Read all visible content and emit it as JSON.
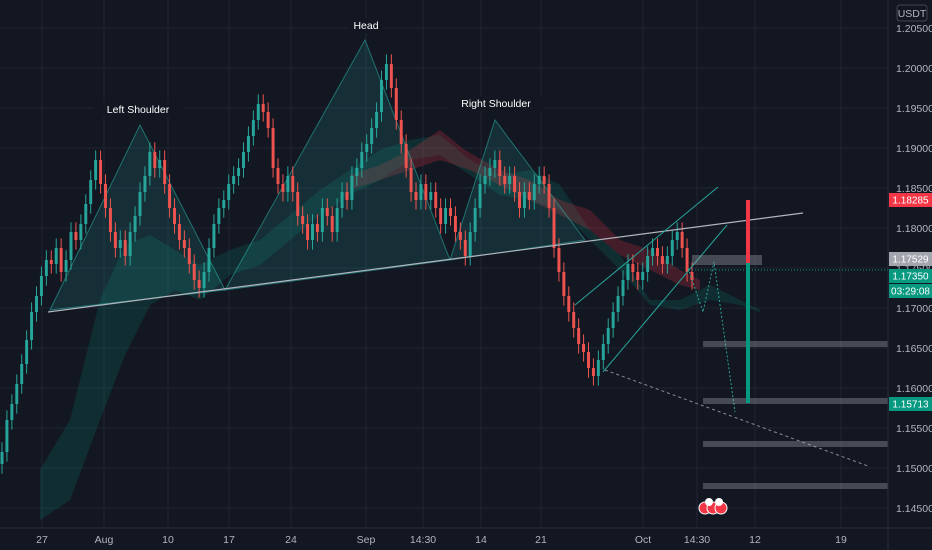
{
  "currency": "USDT",
  "chart_data": {
    "type": "candlestick",
    "title": "",
    "x_ticks": [
      "27",
      "Aug",
      "10",
      "17",
      "24",
      "Sep",
      "14:30",
      "14",
      "21",
      "Oct",
      "14:30",
      "12",
      "19"
    ],
    "y_ticks": [
      "1.20500",
      "1.20000",
      "1.19500",
      "1.19000",
      "1.18500",
      "1.18000",
      "1.17500",
      "1.17000",
      "1.16500",
      "1.16000",
      "1.15500",
      "1.15000",
      "1.14500"
    ],
    "ylim": [
      1.1425,
      1.2085
    ],
    "grid": true,
    "annotations": [
      "Left Shoulder",
      "Head",
      "Right Shoulder"
    ],
    "price_tags": [
      {
        "value": "1.18285",
        "color": "#f23645"
      },
      {
        "value": "1.17529",
        "color": "#a3a6af"
      },
      {
        "value": "1.17350",
        "color": "#089981"
      },
      {
        "value": "03:29:08",
        "color": "#089981"
      },
      {
        "value": "1.15713",
        "color": "#089981"
      }
    ],
    "series": [
      {
        "type": "candles",
        "values": [
          [
            1.1505,
            1.152
          ],
          [
            1.152,
            1.156
          ],
          [
            1.156,
            1.158
          ],
          [
            1.158,
            1.1605
          ],
          [
            1.1605,
            1.163
          ],
          [
            1.163,
            1.166
          ],
          [
            1.166,
            1.1695
          ],
          [
            1.1695,
            1.1715
          ],
          [
            1.1715,
            1.174
          ],
          [
            1.174,
            1.176
          ],
          [
            1.176,
            1.1755
          ],
          [
            1.1755,
            1.1775
          ],
          [
            1.1775,
            1.1745
          ],
          [
            1.1745,
            1.176
          ],
          [
            1.176,
            1.1795
          ],
          [
            1.1795,
            1.1785
          ],
          [
            1.1785,
            1.1805
          ],
          [
            1.1805,
            1.183
          ],
          [
            1.183,
            1.186
          ],
          [
            1.186,
            1.1885
          ],
          [
            1.1885,
            1.1855
          ],
          [
            1.1855,
            1.1825
          ],
          [
            1.1825,
            1.1795
          ],
          [
            1.1795,
            1.1775
          ],
          [
            1.1775,
            1.1785
          ],
          [
            1.1785,
            1.1765
          ],
          [
            1.1765,
            1.1795
          ],
          [
            1.1795,
            1.1815
          ],
          [
            1.1815,
            1.1845
          ],
          [
            1.1845,
            1.1865
          ],
          [
            1.1865,
            1.1895
          ],
          [
            1.1895,
            1.1875
          ],
          [
            1.1875,
            1.1885
          ],
          [
            1.1885,
            1.1855
          ],
          [
            1.1855,
            1.1825
          ],
          [
            1.1825,
            1.1805
          ],
          [
            1.1805,
            1.1785
          ],
          [
            1.1785,
            1.1775
          ],
          [
            1.1775,
            1.1755
          ],
          [
            1.1755,
            1.1735
          ],
          [
            1.1735,
            1.1725
          ],
          [
            1.1725,
            1.1745
          ],
          [
            1.1745,
            1.1775
          ],
          [
            1.1775,
            1.1805
          ],
          [
            1.1805,
            1.1825
          ],
          [
            1.1825,
            1.1835
          ],
          [
            1.1835,
            1.1855
          ],
          [
            1.1855,
            1.1865
          ],
          [
            1.1865,
            1.1875
          ],
          [
            1.1875,
            1.1895
          ],
          [
            1.1895,
            1.1915
          ],
          [
            1.1915,
            1.1935
          ],
          [
            1.1935,
            1.1955
          ],
          [
            1.1955,
            1.1945
          ],
          [
            1.1945,
            1.1925
          ],
          [
            1.1925,
            1.1875
          ],
          [
            1.1875,
            1.1855
          ],
          [
            1.1855,
            1.1845
          ],
          [
            1.1845,
            1.1865
          ],
          [
            1.1865,
            1.1845
          ],
          [
            1.1845,
            1.1815
          ],
          [
            1.1815,
            1.1805
          ],
          [
            1.1805,
            1.1785
          ],
          [
            1.1785,
            1.1805
          ],
          [
            1.1805,
            1.1795
          ],
          [
            1.1795,
            1.1825
          ],
          [
            1.1825,
            1.1815
          ],
          [
            1.1815,
            1.1795
          ],
          [
            1.1795,
            1.1825
          ],
          [
            1.1825,
            1.1845
          ],
          [
            1.1845,
            1.1835
          ],
          [
            1.1835,
            1.1865
          ],
          [
            1.1865,
            1.1875
          ],
          [
            1.1875,
            1.1895
          ],
          [
            1.1895,
            1.1905
          ],
          [
            1.1905,
            1.1925
          ],
          [
            1.1925,
            1.1945
          ],
          [
            1.1945,
            1.1985
          ],
          [
            1.1985,
            1.2005
          ],
          [
            1.2005,
            1.1975
          ],
          [
            1.1975,
            1.1935
          ],
          [
            1.1935,
            1.1905
          ],
          [
            1.1905,
            1.1875
          ],
          [
            1.1875,
            1.1845
          ],
          [
            1.1845,
            1.1835
          ],
          [
            1.1835,
            1.1855
          ],
          [
            1.1855,
            1.1835
          ],
          [
            1.1835,
            1.1845
          ],
          [
            1.1845,
            1.1825
          ],
          [
            1.1825,
            1.1805
          ],
          [
            1.1805,
            1.1825
          ],
          [
            1.1825,
            1.1815
          ],
          [
            1.1815,
            1.1795
          ],
          [
            1.1795,
            1.1785
          ],
          [
            1.1785,
            1.1765
          ],
          [
            1.1765,
            1.1795
          ],
          [
            1.1795,
            1.1825
          ],
          [
            1.1825,
            1.1855
          ],
          [
            1.1855,
            1.1865
          ],
          [
            1.1865,
            1.1875
          ],
          [
            1.1875,
            1.1885
          ],
          [
            1.1885,
            1.1865
          ],
          [
            1.1865,
            1.1855
          ],
          [
            1.1855,
            1.1865
          ],
          [
            1.1865,
            1.1845
          ],
          [
            1.1845,
            1.1825
          ],
          [
            1.1825,
            1.1845
          ],
          [
            1.1845,
            1.1835
          ],
          [
            1.1835,
            1.1855
          ],
          [
            1.1855,
            1.1865
          ],
          [
            1.1865,
            1.1855
          ],
          [
            1.1855,
            1.1825
          ],
          [
            1.1825,
            1.1775
          ],
          [
            1.1775,
            1.1745
          ],
          [
            1.1745,
            1.1715
          ],
          [
            1.1715,
            1.1695
          ],
          [
            1.1695,
            1.1675
          ],
          [
            1.1675,
            1.1655
          ],
          [
            1.1655,
            1.1645
          ],
          [
            1.1645,
            1.1625
          ],
          [
            1.1625,
            1.1615
          ],
          [
            1.1615,
            1.1635
          ],
          [
            1.1635,
            1.1655
          ],
          [
            1.1655,
            1.1675
          ],
          [
            1.1675,
            1.1695
          ],
          [
            1.1695,
            1.1715
          ],
          [
            1.1715,
            1.1735
          ],
          [
            1.1735,
            1.1755
          ],
          [
            1.1755,
            1.1745
          ],
          [
            1.1745,
            1.1735
          ],
          [
            1.1735,
            1.1745
          ],
          [
            1.1745,
            1.1765
          ],
          [
            1.1765,
            1.1775
          ],
          [
            1.1775,
            1.1765
          ],
          [
            1.1765,
            1.1755
          ],
          [
            1.1755,
            1.1765
          ],
          [
            1.1765,
            1.1785
          ],
          [
            1.1785,
            1.1795
          ],
          [
            1.1795,
            1.1775
          ],
          [
            1.1775,
            1.1745
          ],
          [
            1.1745,
            1.1735
          ]
        ]
      }
    ]
  }
}
